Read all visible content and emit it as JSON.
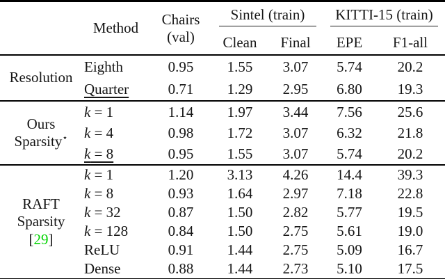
{
  "colors": {
    "citation_green": "#00d300",
    "rule_black": "#000000"
  },
  "header": {
    "method": "Method",
    "chairs_line1": "Chairs",
    "chairs_line2": "(val)",
    "sintel": "Sintel (train)",
    "kitti": "KITTI-15 (train)",
    "sub": {
      "clean": "Clean",
      "final": "Final",
      "epe": "EPE",
      "f1": "F1-all"
    }
  },
  "groups": [
    {
      "label_lines": [
        "Resolution"
      ],
      "rows": [
        {
          "method": "Eighth",
          "values": [
            "0.95",
            "1.55",
            "3.07",
            "5.74",
            "20.2"
          ]
        },
        {
          "method": "Quarter",
          "underlined": true,
          "values": [
            "0.71",
            "1.29",
            "2.95",
            "6.80",
            "19.3"
          ]
        }
      ]
    },
    {
      "label_lines": [
        "Ours",
        "Sparsity"
      ],
      "star": "⋆",
      "rows": [
        {
          "var": "k",
          "rest": " = 1",
          "values": [
            "1.14",
            "1.97",
            "3.44",
            "7.56",
            "25.6"
          ]
        },
        {
          "var": "k",
          "rest": " = 4",
          "values": [
            "0.98",
            "1.72",
            "3.07",
            "6.32",
            "21.8"
          ]
        },
        {
          "var": "k",
          "rest": " = 8",
          "underlined": true,
          "values": [
            "0.95",
            "1.55",
            "3.07",
            "5.74",
            "20.2"
          ]
        }
      ]
    },
    {
      "label_lines": [
        "RAFT",
        "Sparsity"
      ],
      "cite": {
        "open": "[",
        "num": "29",
        "close": "]"
      },
      "rows": [
        {
          "var": "k",
          "rest": " = 1",
          "values": [
            "1.20",
            "3.13",
            "4.26",
            "14.4",
            "39.3"
          ]
        },
        {
          "var": "k",
          "rest": " = 8",
          "values": [
            "0.93",
            "1.64",
            "2.97",
            "7.18",
            "22.8"
          ]
        },
        {
          "var": "k",
          "rest": " = 32",
          "values": [
            "0.87",
            "1.50",
            "2.82",
            "5.77",
            "19.5"
          ]
        },
        {
          "var": "k",
          "rest": " = 128",
          "values": [
            "0.84",
            "1.50",
            "2.75",
            "5.61",
            "19.0"
          ]
        },
        {
          "method": "ReLU",
          "values": [
            "0.91",
            "1.44",
            "2.75",
            "5.09",
            "16.7"
          ]
        },
        {
          "method": "Dense",
          "values": [
            "0.88",
            "1.44",
            "2.73",
            "5.10",
            "17.5"
          ]
        }
      ]
    }
  ]
}
